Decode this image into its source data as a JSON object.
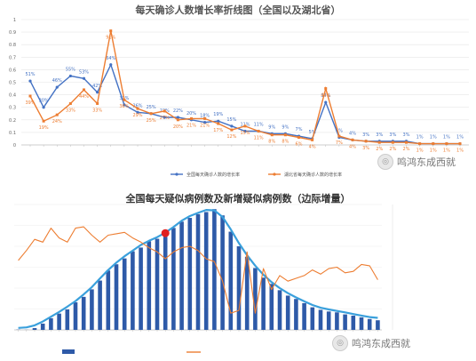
{
  "watermark": "鸣鸿东成西就",
  "chart_data": [
    {
      "type": "line",
      "title": "每天确诊人数增长率折线图（全国以及湖北省）",
      "ylim": [
        0,
        1.0
      ],
      "yticks": [
        "0",
        "0.1",
        "0.2",
        "0.3",
        "0.4",
        "0.5",
        "0.6",
        "0.7",
        "0.8",
        "0.9",
        "1"
      ],
      "series": [
        {
          "name": "全国每天确诊人数的增长率",
          "color": "#4472c4",
          "values": [
            0.51,
            0.3,
            0.46,
            0.55,
            0.53,
            0.42,
            0.64,
            0.32,
            0.26,
            0.25,
            0.22,
            0.22,
            0.2,
            0.18,
            0.19,
            0.15,
            0.11,
            0.11,
            0.09,
            0.09,
            0.07,
            0.05,
            0.34,
            0.06,
            0.04,
            0.03,
            0.03,
            0.03,
            0.03,
            0.01,
            0.01,
            0.01,
            0.01
          ],
          "labels": [
            "51%",
            "30%",
            "46%",
            "55%",
            "53%",
            "42%",
            "64%",
            "32%",
            "26%",
            "25%",
            "22%",
            "22%",
            "20%",
            "18%",
            "19%",
            "15%",
            "11%",
            "11%",
            "9%",
            "9%",
            "7%",
            "5%",
            "34%",
            "6%",
            "4%",
            "3%",
            "3%",
            "3%",
            "3%",
            "1%",
            "1%",
            "1%",
            "1%"
          ]
        },
        {
          "name": "湖北省每天确诊人数的增长率",
          "color": "#ed7d31",
          "values": [
            0.39,
            0.19,
            0.24,
            0.33,
            0.44,
            0.33,
            0.91,
            0.36,
            0.29,
            0.25,
            0.27,
            0.2,
            0.21,
            0.21,
            0.17,
            0.12,
            0.15,
            0.11,
            0.08,
            0.08,
            0.06,
            0.04,
            0.45,
            0.07,
            0.04,
            0.03,
            0.02,
            0.02,
            0.02,
            0.01,
            0.01,
            0.01,
            0.01
          ],
          "labels": [
            "39%",
            "19%",
            "24%",
            "33%",
            "44%",
            "33%",
            "91%",
            "36%",
            "29%",
            "25%",
            "27%",
            "20%",
            "21%",
            "21%",
            "17%",
            "12%",
            "15%",
            "11%",
            "8%",
            "8%",
            "6%",
            "4%",
            "45%",
            "7%",
            "4%",
            "3%",
            "2%",
            "2%",
            "2%",
            "1%",
            "1%",
            "1%",
            "1%"
          ]
        }
      ],
      "legend": "bottom"
    },
    {
      "type": "bar",
      "title": "全国每天疑似病例数及新增疑似病例数（边际增量）",
      "legend": "bottom",
      "highlight_index": 18,
      "bars": {
        "color": "#2e5aa8",
        "values": [
          54,
          27,
          422,
          1500,
          2800,
          3900,
          4900,
          6600,
          7900,
          9700,
          11800,
          14200,
          15700,
          17100,
          18800,
          19700,
          21200,
          21800,
          22300,
          24400,
          25900,
          26800,
          27700,
          28200,
          28900,
          27400,
          23500,
          20000,
          17500,
          14800,
          12500,
          11000,
          9500,
          8200,
          7400,
          6400,
          5400,
          4800,
          4400,
          4200,
          3700,
          3400,
          3000,
          2600,
          2300
        ]
      },
      "line_right": {
        "color": "#ed7d31",
        "values": [
          -17,
          700,
          1500,
          1300,
          2300,
          1600,
          1300,
          2300,
          2400,
          1800,
          1300,
          1800,
          1900,
          2000,
          1600,
          1300,
          900,
          600,
          100,
          600,
          900,
          1000,
          700,
          100,
          -100,
          -1500,
          -3800,
          -3600,
          600,
          -3800,
          -600,
          -2100,
          -1100,
          -1500,
          -1300,
          -1100,
          -700,
          -1000,
          -600,
          -500,
          -900,
          -800,
          -300,
          -400,
          -1400
        ]
      },
      "trend_line": {
        "color": "#3aa0dc"
      }
    }
  ]
}
